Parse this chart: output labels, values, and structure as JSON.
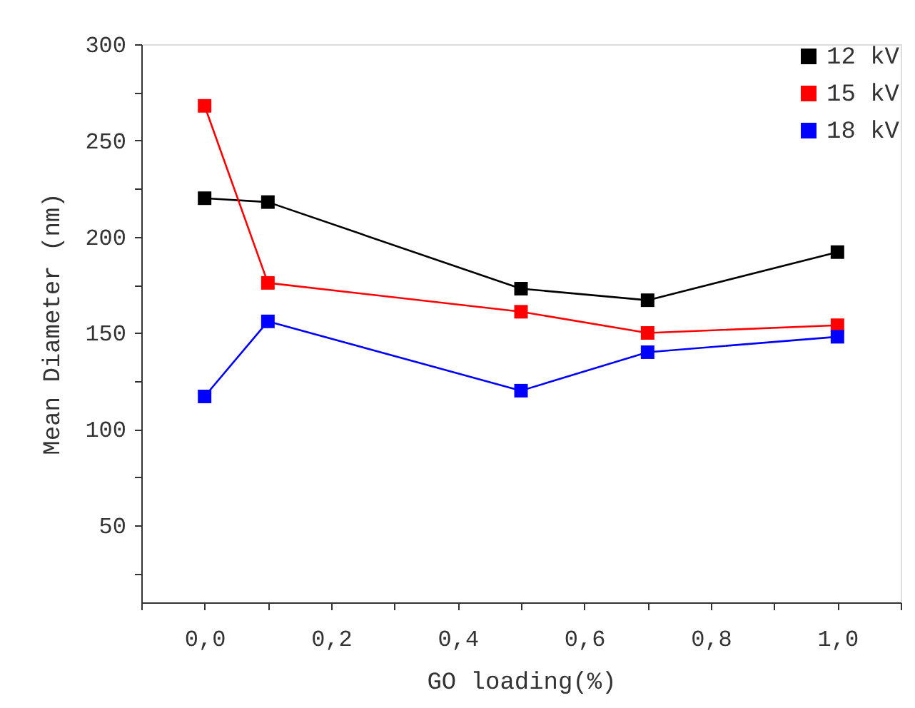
{
  "chart_data": {
    "type": "line",
    "xlabel": "GO loading(%)",
    "ylabel": "Mean Diameter (nm)",
    "x": [
      0,
      0.1,
      0.5,
      0.7,
      1.0
    ],
    "series": [
      {
        "name": "12 kV",
        "color": "#000000",
        "values": [
          220,
          218,
          173,
          167,
          192
        ]
      },
      {
        "name": "15 kV",
        "color": "#ff0000",
        "values": [
          268,
          176,
          161,
          150,
          154
        ]
      },
      {
        "name": "18 kV",
        "color": "#0000ff",
        "values": [
          117,
          156,
          120,
          140,
          148
        ]
      }
    ],
    "xlim": [
      -0.1,
      1.1
    ],
    "xticks": [
      {
        "value": -0.1,
        "label": null
      },
      {
        "value": 0,
        "label": "0,0"
      },
      {
        "value": 0.1,
        "label": null
      },
      {
        "value": 0.2,
        "label": "0,2"
      },
      {
        "value": 0.3,
        "label": null
      },
      {
        "value": 0.4,
        "label": "0,4"
      },
      {
        "value": 0.5,
        "label": null
      },
      {
        "value": 0.6,
        "label": "0,6"
      },
      {
        "value": 0.7,
        "label": null
      },
      {
        "value": 0.8,
        "label": "0,8"
      },
      {
        "value": 0.9,
        "label": null
      },
      {
        "value": 1.0,
        "label": "1,0"
      },
      {
        "value": 1.1,
        "label": null
      }
    ],
    "ylim": [
      10,
      300
    ],
    "yticks": [
      {
        "value": 25,
        "label": null
      },
      50,
      {
        "value": 75,
        "label": null
      },
      100,
      {
        "value": 125,
        "label": null
      },
      150,
      {
        "value": 175,
        "label": null
      },
      200,
      {
        "value": 225,
        "label": null
      },
      250,
      {
        "value": 275,
        "label": null
      },
      300
    ],
    "grid": false,
    "legend": "top right",
    "marker": "square",
    "line_style": "solid"
  }
}
